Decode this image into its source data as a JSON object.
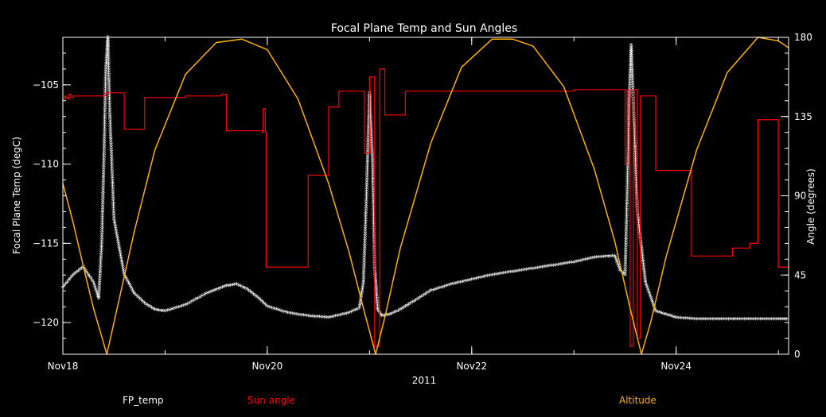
{
  "chart_data": {
    "type": "line",
    "title": "Focal Plane Temp and Sun Angles",
    "xlabel": "2011",
    "ylabel_left": "Focal Plane Temp (degC)",
    "ylabel_right": "Angle (degrees)",
    "x_unit": "days since Nov18 2011",
    "xlim": [
      0,
      7.1
    ],
    "ylim_left": [
      -122,
      -102
    ],
    "ylim_right": [
      0,
      180
    ],
    "x_ticks": [
      {
        "x": 0,
        "label": "Nov18"
      },
      {
        "x": 2,
        "label": "Nov20"
      },
      {
        "x": 4,
        "label": "Nov22"
      },
      {
        "x": 6,
        "label": "Nov24"
      }
    ],
    "y_ticks_left": [
      -105,
      -110,
      -115,
      -120
    ],
    "y_ticks_right": [
      0,
      45,
      90,
      135,
      180
    ],
    "colors": {
      "fp_temp": "#ffffff",
      "sun_angle": "#ff0000",
      "altitude": "#ffb000"
    },
    "legend": [
      "FP_temp",
      "Sun angle",
      "Altitude"
    ],
    "series": [
      {
        "name": "FP_temp",
        "axis": "left",
        "style": "markers",
        "x": [
          0,
          0.1,
          0.2,
          0.3,
          0.35,
          0.38,
          0.4,
          0.42,
          0.44,
          0.46,
          0.5,
          0.6,
          0.7,
          0.8,
          0.9,
          1.0,
          1.2,
          1.4,
          1.6,
          1.7,
          1.8,
          1.9,
          2.0,
          2.2,
          2.4,
          2.6,
          2.8,
          2.9,
          2.94,
          2.97,
          3.0,
          3.03,
          3.05,
          3.08,
          3.12,
          3.2,
          3.3,
          3.4,
          3.6,
          3.8,
          4.0,
          4.2,
          4.4,
          4.6,
          4.8,
          5.0,
          5.2,
          5.4,
          5.45,
          5.5,
          5.52,
          5.54,
          5.56,
          5.58,
          5.62,
          5.7,
          5.8,
          5.9,
          6.0,
          6.2,
          6.4,
          6.6,
          6.8,
          7.0,
          7.1
        ],
        "y": [
          -117.8,
          -117.0,
          -116.5,
          -117.5,
          -118.5,
          -115,
          -110,
          -104,
          -102,
          -107,
          -113.5,
          -117.0,
          -118.2,
          -118.8,
          -119.2,
          -119.3,
          -118.9,
          -118.2,
          -117.7,
          -117.6,
          -117.9,
          -118.4,
          -119.0,
          -119.4,
          -119.6,
          -119.7,
          -119.4,
          -119.1,
          -117.5,
          -112,
          -105.5,
          -110,
          -116.5,
          -119.2,
          -119.6,
          -119.5,
          -119.2,
          -118.8,
          -118.0,
          -117.6,
          -117.3,
          -117.0,
          -116.8,
          -116.6,
          -116.4,
          -116.2,
          -115.9,
          -115.8,
          -116.7,
          -117.0,
          -112,
          -106,
          -102.5,
          -106,
          -113,
          -117.5,
          -119.3,
          -119.5,
          -119.7,
          -119.8,
          -119.8,
          -119.8,
          -119.8,
          -119.8,
          -119.8
        ]
      },
      {
        "name": "Sun angle",
        "axis": "left",
        "style": "step",
        "x": [
          0,
          0.02,
          0.03,
          0.05,
          0.06,
          0.08,
          0.1,
          0.2,
          0.4,
          0.42,
          0.5,
          0.6,
          0.78,
          0.8,
          1.0,
          1.2,
          1.55,
          1.6,
          1.8,
          1.95,
          1.96,
          1.98,
          1.99,
          2.02,
          2.03,
          2.35,
          2.4,
          2.5,
          2.6,
          2.65,
          2.7,
          2.8,
          2.9,
          2.95,
          3.0,
          3.05,
          3.1,
          3.15,
          3.16,
          3.2,
          3.3,
          3.35,
          3.4,
          4.0,
          5.0,
          5.45,
          5.5,
          5.52,
          5.55,
          5.58,
          5.6,
          5.62,
          5.65,
          5.75,
          5.8,
          5.85,
          5.9,
          6.0,
          6.15,
          6.2,
          6.5,
          6.55,
          6.7,
          6.72,
          6.78,
          6.8,
          6.98,
          7.0,
          7.1
        ],
        "y": [
          -105.9,
          -105.7,
          -105.8,
          -105.9,
          -105.6,
          -105.8,
          -105.7,
          -105.7,
          -105.7,
          -105.5,
          -105.5,
          -107.8,
          -107.8,
          -105.8,
          -105.8,
          -105.7,
          -105.6,
          -107.9,
          -107.9,
          -108.0,
          -106.5,
          -108.0,
          -116.5,
          -116.5,
          -116.5,
          -116.5,
          -110.7,
          -110.7,
          -106.4,
          -106.4,
          -105.4,
          -105.4,
          -105.4,
          -109.3,
          -104.5,
          -121.5,
          -104.0,
          -106.9,
          -106.9,
          -106.9,
          -106.9,
          -105.4,
          -105.4,
          -105.4,
          -105.3,
          -105.3,
          -110.0,
          -105.3,
          -121.5,
          -105.3,
          -105.3,
          -121.0,
          -105.7,
          -105.7,
          -110.4,
          -110.4,
          -110.4,
          -110.4,
          -115.8,
          -115.8,
          -115.8,
          -115.3,
          -115.3,
          -115.0,
          -115.0,
          -107.2,
          -107.2,
          -116.5,
          -116.5
        ]
      },
      {
        "name": "Altitude",
        "axis": "right",
        "style": "line",
        "x": [
          0,
          0.1,
          0.2,
          0.3,
          0.4,
          0.43,
          0.5,
          0.7,
          0.9,
          1.2,
          1.5,
          1.75,
          2.0,
          2.3,
          2.6,
          2.8,
          2.95,
          3.06,
          3.15,
          3.3,
          3.6,
          3.9,
          4.2,
          4.4,
          4.6,
          4.9,
          5.2,
          5.4,
          5.55,
          5.66,
          5.75,
          5.9,
          6.2,
          6.5,
          6.8,
          7.0,
          7.1
        ],
        "y": [
          97,
          75,
          50,
          26,
          6,
          0,
          18,
          70,
          116,
          159,
          177,
          179,
          173,
          145,
          97,
          58,
          24,
          0,
          21,
          60,
          120,
          163,
          179,
          179,
          175,
          152,
          105,
          64,
          26,
          0,
          18,
          55,
          116,
          160,
          180,
          178,
          174
        ]
      }
    ]
  }
}
